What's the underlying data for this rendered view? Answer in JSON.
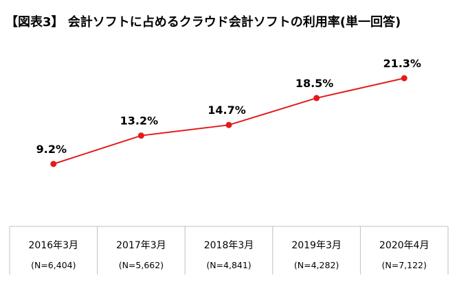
{
  "chart_data": {
    "type": "line",
    "title": "【図表3】 会計ソフトに占めるクラウド会計ソフトの利用率(単一回答)",
    "categories": [
      "2016年3月",
      "2017年3月",
      "2018年3月",
      "2019年3月",
      "2020年4月"
    ],
    "sample_sizes": [
      "(N=6,404)",
      "(N=5,662)",
      "(N=4,841)",
      "(N=4,282)",
      "(N=7,122)"
    ],
    "series": [
      {
        "values": [
          9.2,
          13.2,
          14.7,
          18.5,
          21.3
        ],
        "labels": [
          "9.2%",
          "13.2%",
          "14.7%",
          "18.5%",
          "21.3%"
        ],
        "color": "#e31a1c"
      }
    ],
    "grid": false,
    "legend": "none"
  }
}
